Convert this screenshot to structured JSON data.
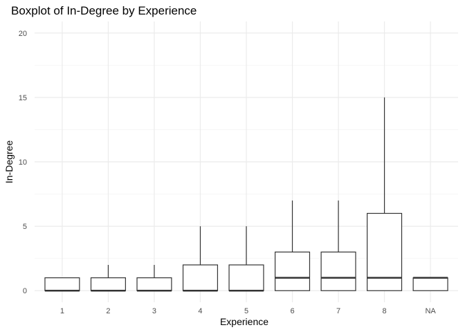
{
  "chart_data": {
    "type": "boxplot",
    "title": "Boxplot of In-Degree by Experience",
    "xlabel": "Experience",
    "ylabel": "In-Degree",
    "ylim": [
      -0.9,
      20.9
    ],
    "yticks": [
      0,
      5,
      10,
      15,
      20
    ],
    "y_minor_ticks": [
      2.5,
      7.5,
      12.5,
      17.5
    ],
    "grid": true,
    "categories": [
      "1",
      "2",
      "3",
      "4",
      "5",
      "6",
      "7",
      "8",
      "NA"
    ],
    "boxes": [
      {
        "category": "1",
        "min": 0,
        "q1": 0,
        "median": 0,
        "q3": 1,
        "max": 1
      },
      {
        "category": "2",
        "min": 0,
        "q1": 0,
        "median": 0,
        "q3": 1,
        "max": 2
      },
      {
        "category": "3",
        "min": 0,
        "q1": 0,
        "median": 0,
        "q3": 1,
        "max": 2
      },
      {
        "category": "4",
        "min": 0,
        "q1": 0,
        "median": 0,
        "q3": 2,
        "max": 5
      },
      {
        "category": "5",
        "min": 0,
        "q1": 0,
        "median": 0,
        "q3": 2,
        "max": 5
      },
      {
        "category": "6",
        "min": 0,
        "q1": 0,
        "median": 1,
        "q3": 3,
        "max": 7
      },
      {
        "category": "7",
        "min": 0,
        "q1": 0,
        "median": 1,
        "q3": 3,
        "max": 7
      },
      {
        "category": "8",
        "min": 0,
        "q1": 0,
        "median": 1,
        "q3": 6,
        "max": 15
      },
      {
        "category": "NA",
        "min": 0,
        "q1": 0,
        "median": 1,
        "q3": 1,
        "max": 1
      }
    ],
    "colors": {
      "box_stroke": "#333333",
      "grid_major": "#ebebeb",
      "grid_minor": "#f5f5f5",
      "tick_text": "#4d4d4d"
    }
  }
}
